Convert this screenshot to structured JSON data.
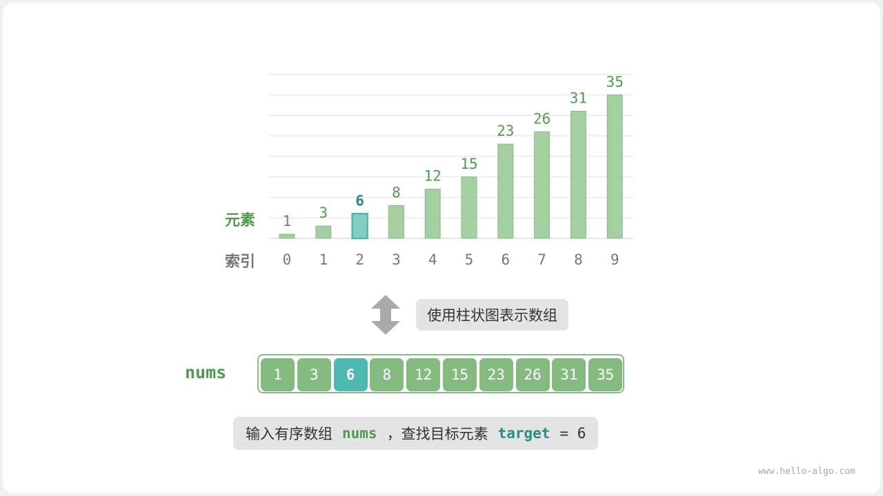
{
  "chart_data": {
    "type": "bar",
    "categories": [
      "0",
      "1",
      "2",
      "3",
      "4",
      "5",
      "6",
      "7",
      "8",
      "9"
    ],
    "values": [
      1,
      3,
      6,
      8,
      12,
      15,
      23,
      26,
      31,
      35
    ],
    "highlight_index": 2,
    "ylim": [
      0,
      40
    ],
    "grid": true,
    "xlabel": "索引",
    "ylabel": "元素",
    "colors": {
      "bar": "#a5cea1",
      "bar_border": "#86bb84",
      "highlight": "#86cdc3",
      "highlight_border": "#4fb8b0",
      "label": "#4f9a4f",
      "highlight_label": "#2f8a86",
      "tick": "#777777"
    }
  },
  "arrow_note": "使用柱状图表示数组",
  "array": {
    "name": "nums",
    "values": [
      "1",
      "3",
      "6",
      "8",
      "12",
      "15",
      "23",
      "26",
      "31",
      "35"
    ],
    "highlight_index": 2
  },
  "caption": {
    "part1": "输入有序数组",
    "nums": "nums",
    "part2": "，查找目标元素",
    "target": "target",
    "eq": "= 6"
  },
  "watermark": "www.hello-algo.com"
}
